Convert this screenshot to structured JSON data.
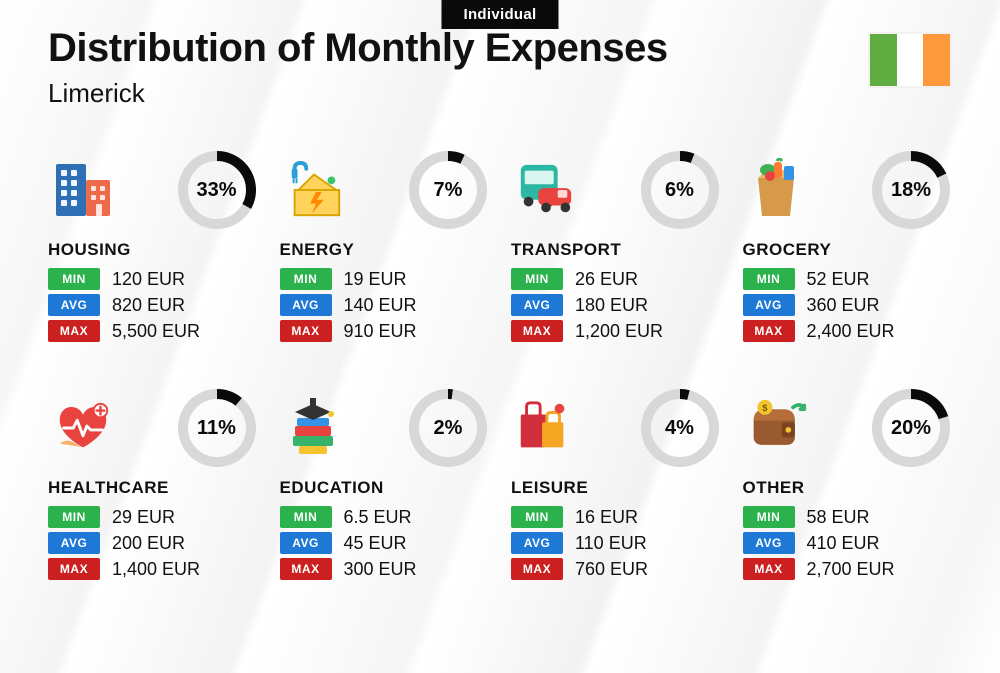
{
  "tag_label": "Individual",
  "title": "Distribution of Monthly Expenses",
  "city": "Limerick",
  "currency": "EUR",
  "flag": {
    "left": "#5fad41",
    "middle": "#ffffff",
    "right": "#ff9a3c"
  },
  "pill_labels": {
    "min": "MIN",
    "avg": "AVG",
    "max": "MAX"
  },
  "pill_colors": {
    "min": "#2bb24c",
    "avg": "#1e78d6",
    "max": "#cc1f1f"
  },
  "ring_style": {
    "radius": 34,
    "stroke_width": 10,
    "bg_color": "#d8d8d8",
    "fg_color": "#0a0a0a",
    "pct_fontsize": 20,
    "pct_fontweight": 900
  },
  "typography": {
    "title_fontsize": 40,
    "title_fontweight": 900,
    "subtitle_fontsize": 26,
    "category_fontsize": 17,
    "category_fontweight": 800,
    "value_fontsize": 18
  },
  "background_color": "#ffffff",
  "categories": [
    {
      "key": "housing",
      "name": "HOUSING",
      "pct": 33,
      "min": "120 EUR",
      "avg": "820 EUR",
      "max": "5,500 EUR"
    },
    {
      "key": "energy",
      "name": "ENERGY",
      "pct": 7,
      "min": "19 EUR",
      "avg": "140 EUR",
      "max": "910 EUR"
    },
    {
      "key": "transport",
      "name": "TRANSPORT",
      "pct": 6,
      "min": "26 EUR",
      "avg": "180 EUR",
      "max": "1,200 EUR"
    },
    {
      "key": "grocery",
      "name": "GROCERY",
      "pct": 18,
      "min": "52 EUR",
      "avg": "360 EUR",
      "max": "2,400 EUR"
    },
    {
      "key": "healthcare",
      "name": "HEALTHCARE",
      "pct": 11,
      "min": "29 EUR",
      "avg": "200 EUR",
      "max": "1,400 EUR"
    },
    {
      "key": "education",
      "name": "EDUCATION",
      "pct": 2,
      "min": "6.5 EUR",
      "avg": "45 EUR",
      "max": "300 EUR"
    },
    {
      "key": "leisure",
      "name": "LEISURE",
      "pct": 4,
      "min": "16 EUR",
      "avg": "110 EUR",
      "max": "760 EUR"
    },
    {
      "key": "other",
      "name": "OTHER",
      "pct": 20,
      "min": "58 EUR",
      "avg": "410 EUR",
      "max": "2,700 EUR"
    }
  ]
}
